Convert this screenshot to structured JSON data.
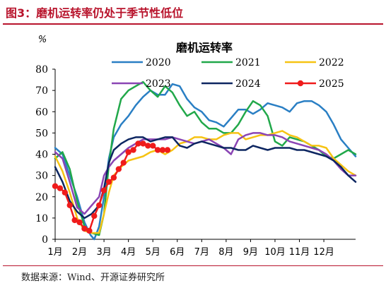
{
  "figure": {
    "title": "图3：磨机运转率仍处于季节性低位",
    "source": "数据来源：Wind、开源证券研究所"
  },
  "colors": {
    "title_red": "#b8142c",
    "s2020": "#2a7fc4",
    "s2021": "#21a84a",
    "s2022": "#f6c313",
    "s2023": "#8a45b4",
    "s2024": "#0d2661",
    "s2025": "#ef1b1b"
  },
  "chart_data": {
    "type": "line",
    "title": "磨机运转率",
    "unit_label": "%",
    "x_tick_labels": [
      "1月",
      "2月",
      "3月",
      "4月",
      "5月",
      "6月",
      "7月",
      "8月",
      "9月",
      "10月",
      "11月",
      "12月"
    ],
    "x_tick_positions": [
      1,
      2,
      3,
      4,
      5,
      6,
      7,
      8,
      9,
      10,
      11,
      12
    ],
    "xlim": [
      1,
      13.3
    ],
    "ylim": [
      0,
      80
    ],
    "y_ticks": [
      0,
      10,
      20,
      30,
      40,
      50,
      60,
      70,
      80
    ],
    "grid": false,
    "legend_position": "top, inside plot area",
    "series": [
      {
        "name": "2020",
        "x": [
          1.0,
          1.3,
          1.6,
          1.9,
          2.2,
          2.45,
          2.6,
          2.8,
          3.0,
          3.2,
          3.4,
          3.7,
          4.0,
          4.3,
          4.6,
          4.9,
          5.2,
          5.5,
          5.8,
          6.1,
          6.4,
          6.7,
          7.0,
          7.3,
          7.6,
          7.9,
          8.2,
          8.5,
          8.8,
          9.1,
          9.4,
          9.7,
          10.0,
          10.3,
          10.6,
          10.9,
          11.2,
          11.5,
          11.8,
          12.1,
          12.4,
          12.7,
          13.0,
          13.3
        ],
        "values": [
          43,
          40,
          30,
          20,
          8,
          2,
          0,
          6,
          20,
          38,
          48,
          54,
          58,
          63,
          67,
          70,
          68,
          68,
          73,
          72,
          66,
          62,
          60,
          56,
          55,
          53,
          57,
          61,
          61,
          59,
          61,
          64,
          63,
          62,
          60,
          64,
          65,
          65,
          63,
          60,
          54,
          47,
          43,
          39
        ]
      },
      {
        "name": "2021",
        "x": [
          1.0,
          1.3,
          1.6,
          1.9,
          2.2,
          2.5,
          2.8,
          3.0,
          3.2,
          3.4,
          3.7,
          4.0,
          4.3,
          4.6,
          4.9,
          5.2,
          5.5,
          5.8,
          6.1,
          6.4,
          6.7,
          7.0,
          7.3,
          7.6,
          7.9,
          8.2,
          8.5,
          8.8,
          9.1,
          9.4,
          9.7,
          10.0,
          10.3,
          10.6,
          10.9,
          11.2,
          11.5,
          11.8,
          12.1,
          12.4,
          12.7,
          13.0,
          13.3
        ],
        "values": [
          38,
          41,
          33,
          18,
          6,
          3,
          2,
          12,
          35,
          52,
          66,
          70,
          72,
          74,
          70,
          67,
          72,
          69,
          63,
          58,
          60,
          55,
          52,
          52,
          50,
          50,
          54,
          60,
          65,
          63,
          58,
          46,
          44,
          48,
          47,
          46,
          44,
          42,
          39,
          38,
          40,
          42,
          40
        ]
      },
      {
        "name": "2022",
        "x": [
          1.0,
          1.3,
          1.6,
          1.9,
          2.2,
          2.5,
          2.8,
          3.0,
          3.2,
          3.4,
          3.7,
          4.0,
          4.3,
          4.6,
          4.9,
          5.2,
          5.5,
          5.8,
          6.1,
          6.4,
          6.7,
          7.0,
          7.3,
          7.6,
          7.9,
          8.2,
          8.5,
          8.8,
          9.1,
          9.4,
          9.7,
          10.0,
          10.3,
          10.6,
          10.9,
          11.2,
          11.5,
          11.8,
          12.1,
          12.4,
          12.7,
          13.0,
          13.3
        ],
        "values": [
          39,
          32,
          22,
          10,
          4,
          3,
          3,
          12,
          22,
          30,
          34,
          37,
          38,
          39,
          41,
          42,
          40,
          42,
          45,
          46,
          48,
          48,
          47,
          47,
          49,
          50,
          50,
          47,
          48,
          49,
          49,
          50,
          51,
          49,
          48,
          46,
          44,
          44,
          43,
          38,
          35,
          32,
          30
        ]
      },
      {
        "name": "2023",
        "x": [
          1.0,
          1.3,
          1.6,
          1.9,
          2.2,
          2.5,
          2.8,
          3.0,
          3.2,
          3.4,
          3.7,
          4.0,
          4.3,
          4.6,
          4.9,
          5.2,
          5.5,
          5.8,
          6.1,
          6.4,
          6.7,
          7.0,
          7.3,
          7.6,
          7.9,
          8.2,
          8.5,
          8.8,
          9.1,
          9.4,
          9.7,
          10.0,
          10.3,
          10.6,
          10.9,
          11.2,
          11.5,
          11.8,
          12.1,
          12.4,
          12.7,
          13.0,
          13.3
        ],
        "values": [
          41,
          38,
          27,
          15,
          12,
          16,
          20,
          30,
          34,
          37,
          40,
          43,
          45,
          47,
          47,
          47,
          47,
          48,
          47,
          46,
          45,
          46,
          47,
          45,
          43,
          40,
          47,
          49,
          50,
          50,
          49,
          49,
          48,
          46,
          45,
          44,
          43,
          42,
          40,
          37,
          33,
          30,
          30
        ]
      },
      {
        "name": "2024",
        "x": [
          1.0,
          1.3,
          1.6,
          1.9,
          2.2,
          2.5,
          2.8,
          3.0,
          3.2,
          3.4,
          3.7,
          4.0,
          4.3,
          4.6,
          4.9,
          5.2,
          5.5,
          5.8,
          6.1,
          6.4,
          6.7,
          7.0,
          7.3,
          7.6,
          7.9,
          8.2,
          8.5,
          8.8,
          9.1,
          9.4,
          9.7,
          10.0,
          10.3,
          10.6,
          10.9,
          11.2,
          11.5,
          11.8,
          12.1,
          12.4,
          12.7,
          13.0,
          13.3
        ],
        "values": [
          34,
          27,
          18,
          13,
          10,
          12,
          16,
          24,
          36,
          42,
          45,
          47,
          48,
          48,
          46,
          47,
          48,
          48,
          44,
          43,
          45,
          46,
          45,
          44,
          43,
          43,
          42,
          42,
          44,
          43,
          42,
          43,
          43,
          43,
          42,
          42,
          41,
          40,
          39,
          37,
          34,
          30,
          27
        ]
      },
      {
        "name": "2025",
        "x": [
          1.0,
          1.2,
          1.4,
          1.6,
          1.8,
          2.0,
          2.2,
          2.4,
          2.6,
          2.8,
          3.0,
          3.2,
          3.4,
          3.6,
          3.8,
          4.0,
          4.2,
          4.4,
          4.6,
          4.8,
          5.0,
          5.2,
          5.4,
          5.6
        ],
        "values": [
          25,
          24,
          22,
          16,
          9,
          8,
          5,
          4,
          11,
          16,
          23,
          27,
          29,
          33,
          36,
          41,
          42,
          45,
          45,
          44,
          44,
          42,
          42,
          42
        ]
      }
    ]
  }
}
